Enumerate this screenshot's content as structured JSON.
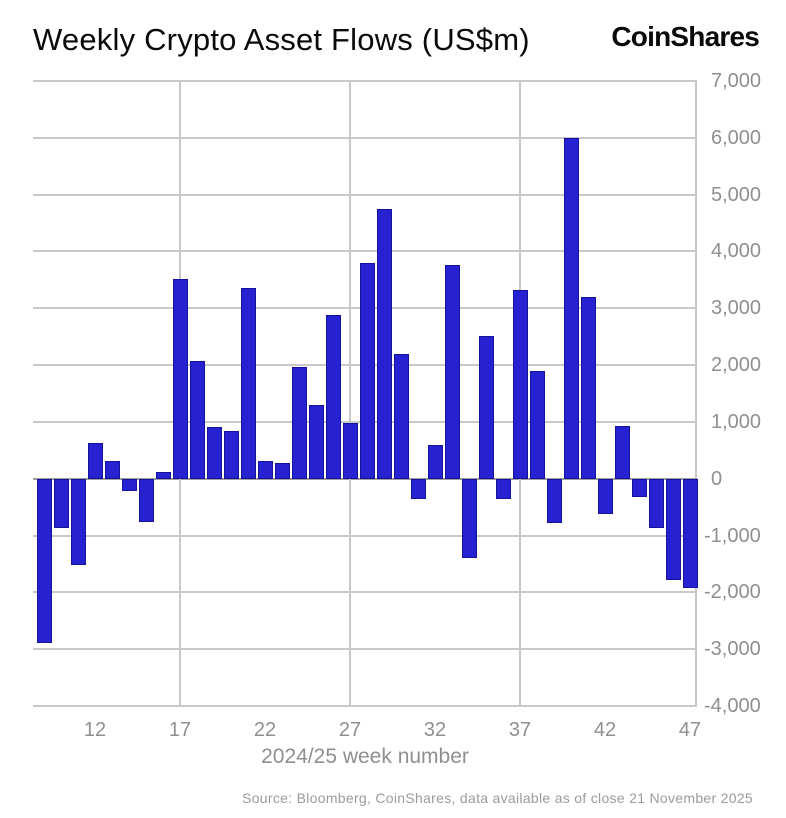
{
  "header": {
    "title": "Weekly Crypto Asset Flows (US$m)",
    "logo": "CoinShares"
  },
  "chart_data": {
    "type": "bar",
    "title": "Weekly Crypto Asset Flows (US$m)",
    "xlabel": "2024/25 week number",
    "ylabel": "",
    "ylim": [
      -4000,
      7000
    ],
    "grid": true,
    "legend": "none",
    "yticks": [
      {
        "v": 7000,
        "label": "7,000"
      },
      {
        "v": 6000,
        "label": "6,000"
      },
      {
        "v": 5000,
        "label": "5,000"
      },
      {
        "v": 4000,
        "label": "4,000"
      },
      {
        "v": 3000,
        "label": "3,000"
      },
      {
        "v": 2000,
        "label": "2,000"
      },
      {
        "v": 1000,
        "label": "1,000"
      },
      {
        "v": 0,
        "label": "0"
      },
      {
        "v": -1000,
        "label": "-1,000"
      },
      {
        "v": -2000,
        "label": "-2,000"
      },
      {
        "v": -3000,
        "label": "-3,000"
      },
      {
        "v": -4000,
        "label": "-4,000"
      }
    ],
    "xticks": [
      {
        "v": 12,
        "label": "12"
      },
      {
        "v": 17,
        "label": "17"
      },
      {
        "v": 22,
        "label": "22"
      },
      {
        "v": 27,
        "label": "27"
      },
      {
        "v": 32,
        "label": "32"
      },
      {
        "v": 37,
        "label": "37"
      },
      {
        "v": 42,
        "label": "42"
      },
      {
        "v": 47,
        "label": "47"
      }
    ],
    "x_gridlines": [
      17,
      27,
      37
    ],
    "x": [
      9,
      10,
      11,
      12,
      13,
      14,
      15,
      16,
      17,
      18,
      19,
      20,
      21,
      22,
      23,
      24,
      25,
      26,
      27,
      28,
      29,
      30,
      31,
      32,
      33,
      34,
      35,
      36,
      37,
      38,
      39,
      40,
      41,
      42,
      43,
      44,
      45,
      46,
      47
    ],
    "values": [
      -2900,
      -860,
      -1510,
      630,
      310,
      -210,
      -770,
      110,
      3520,
      2080,
      915,
      845,
      3360,
      320,
      270,
      1975,
      1300,
      2890,
      985,
      3800,
      4740,
      2200,
      -350,
      590,
      3760,
      -1400,
      2520,
      -360,
      3330,
      1900,
      -780,
      5990,
      3190,
      -620,
      930,
      -320,
      -870,
      -1790,
      -1920
    ],
    "colors": {
      "bar": "#2621d1",
      "bar_border": "#17129b",
      "grid": "#c9c9c9",
      "zero_line": "#9e9e9e",
      "axis_text": "#8f8f8f",
      "title_text": "#0a0a0a"
    }
  },
  "footer": {
    "source": "Source: Bloomberg, CoinShares, data available as of close 21 November 2025"
  }
}
